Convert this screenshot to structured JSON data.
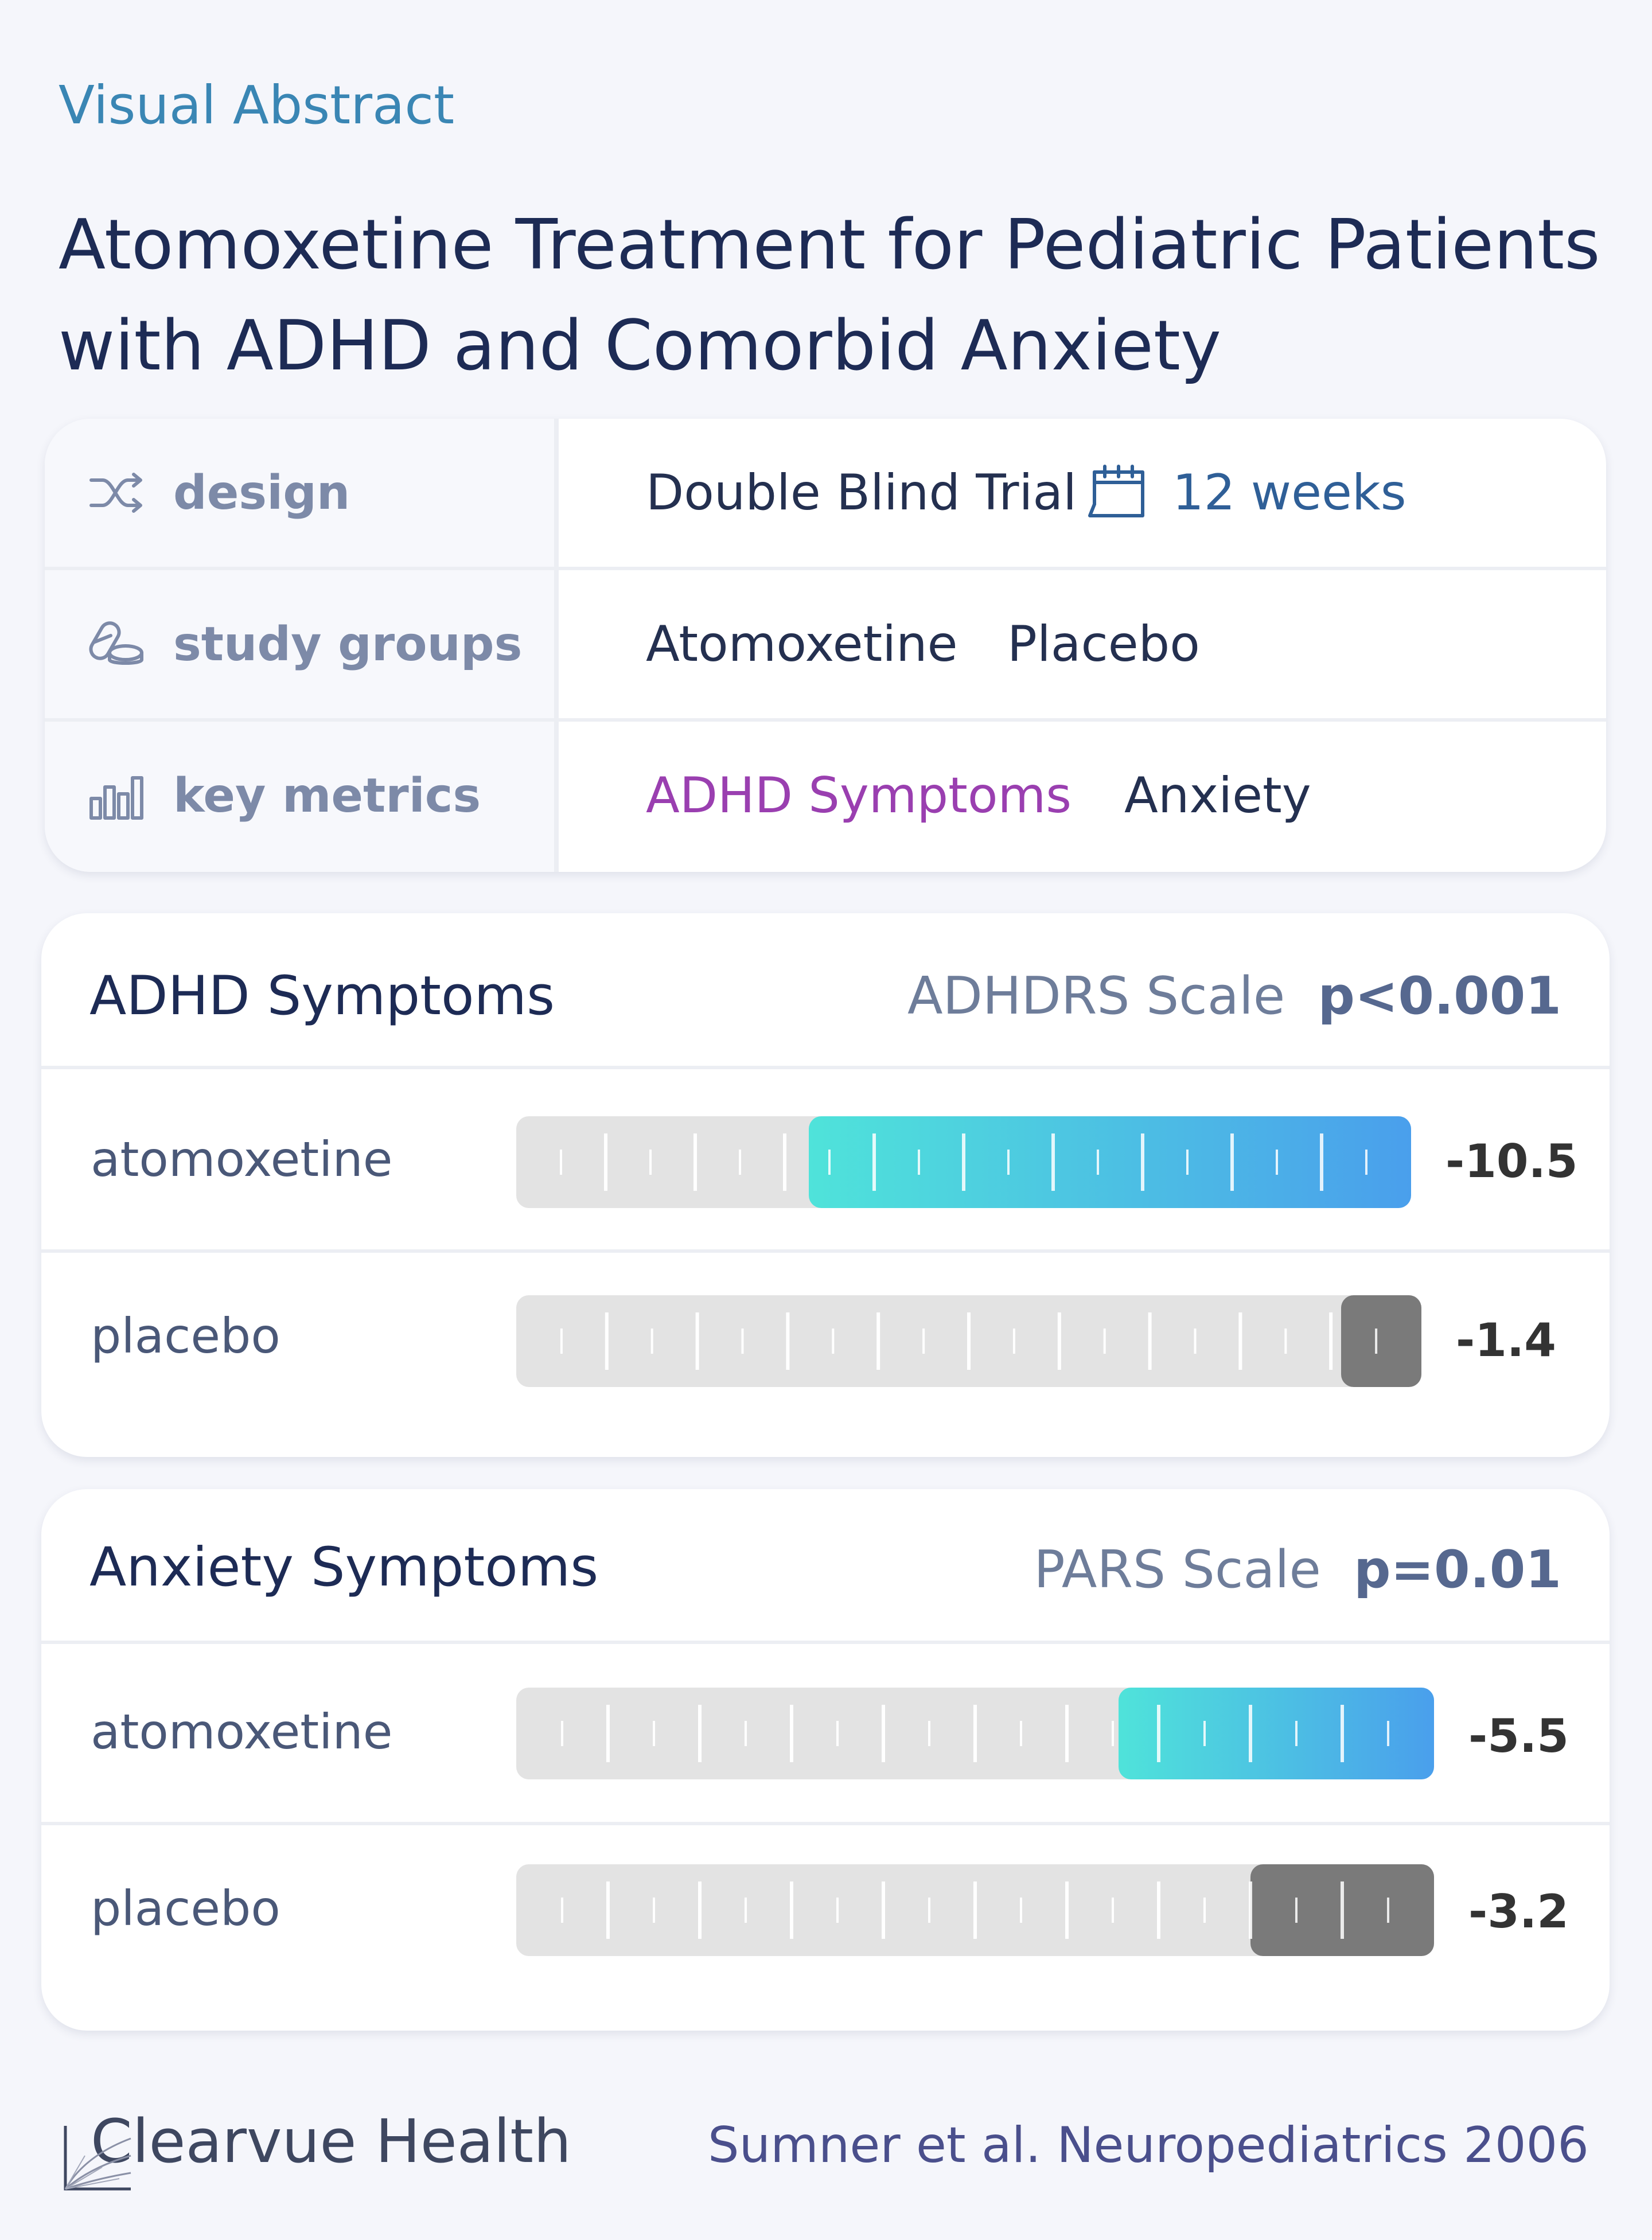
{
  "header": {
    "eyebrow": "Visual Abstract",
    "title": "Atomoxetine Treatment for Pediatric Patients with ADHD and Comorbid Anxiety"
  },
  "info": {
    "design": {
      "label": "design",
      "icon": "shuffle-icon",
      "value": "Double Blind Trial",
      "duration": "12 weeks",
      "duration_icon": "calendar-icon",
      "duration_color": "#2f5f97"
    },
    "groups": {
      "label": "study groups",
      "icon": "pills-icon",
      "values": [
        "Atomoxetine",
        "Placebo"
      ]
    },
    "metrics": {
      "label": "key metrics",
      "icon": "bar-chart-icon",
      "values": [
        "ADHD Symptoms",
        "Anxiety"
      ],
      "highlight_color": "#9a3fb0"
    }
  },
  "chart_data": [
    {
      "type": "bar",
      "title": "ADHD Symptoms",
      "scale": "ADHDRS Scale",
      "p_value": "p<0.001",
      "categories": [
        "atomoxetine",
        "placebo"
      ],
      "values": [
        -10.5,
        -1.4
      ],
      "value_labels": [
        "-10.5",
        "-1.4"
      ],
      "colors": [
        "#4fe3da",
        "#7a7a7a"
      ],
      "gradient_end": "#4a9fec"
    },
    {
      "type": "bar",
      "title": "Anxiety Symptoms",
      "scale": "PARS Scale",
      "p_value": "p=0.01",
      "categories": [
        "atomoxetine",
        "placebo"
      ],
      "values": [
        -5.5,
        -3.2
      ],
      "value_labels": [
        "-5.5",
        "-3.2"
      ],
      "colors": [
        "#4fe3da",
        "#7a7a7a"
      ],
      "gradient_end": "#4a9fec"
    }
  ],
  "footer": {
    "brand": "Clearvue Health",
    "citation": "Sumner et al. Neuropediatrics 2006"
  }
}
